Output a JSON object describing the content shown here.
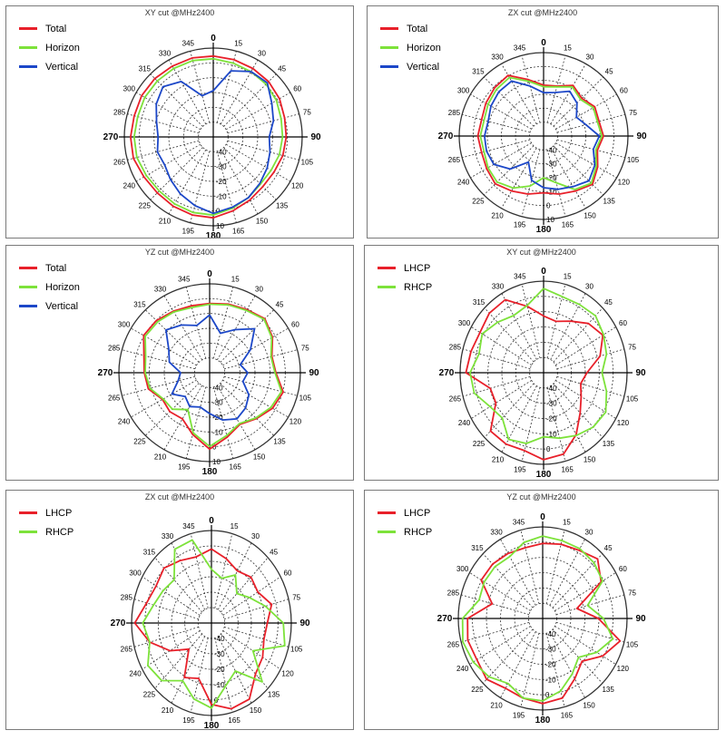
{
  "colors": {
    "red": "#e8202a",
    "green": "#7de23a",
    "blue": "#1c47c8",
    "grid": "#333333"
  },
  "chart_data": [
    {
      "type": "polar-line",
      "title": "XY cut @MHz2400",
      "angle_labels": [
        "0",
        "15",
        "30",
        "45",
        "60",
        "75",
        "90",
        "105",
        "120",
        "135",
        "150",
        "165",
        "180",
        "195",
        "210",
        "225",
        "240",
        "265",
        "270",
        "285",
        "300",
        "315",
        "330",
        "345"
      ],
      "radial_labels": [
        "-40",
        "-30",
        "-20",
        "-10",
        "0",
        "10"
      ],
      "legend": "top-left",
      "series": [
        {
          "name": "Total",
          "color": "red",
          "r": [
            0.91,
            0.9,
            0.89,
            0.88,
            0.86,
            0.83,
            0.82,
            0.81,
            0.79,
            0.79,
            0.82,
            0.86,
            0.91,
            0.91,
            0.9,
            0.89,
            0.9,
            0.93,
            0.93,
            0.92,
            0.93,
            0.93,
            0.92,
            0.92
          ]
        },
        {
          "name": "Horizon",
          "color": "green",
          "r": [
            0.88,
            0.86,
            0.85,
            0.84,
            0.82,
            0.79,
            0.78,
            0.77,
            0.75,
            0.75,
            0.79,
            0.83,
            0.88,
            0.88,
            0.87,
            0.86,
            0.87,
            0.89,
            0.89,
            0.88,
            0.89,
            0.89,
            0.89,
            0.89
          ]
        },
        {
          "name": "Vertical",
          "color": "blue",
          "r": [
            0.52,
            0.77,
            0.85,
            0.86,
            0.76,
            0.7,
            0.63,
            0.66,
            0.7,
            0.74,
            0.79,
            0.82,
            0.86,
            0.8,
            0.74,
            0.68,
            0.63,
            0.65,
            0.62,
            0.66,
            0.74,
            0.8,
            0.72,
            0.48
          ]
        }
      ]
    },
    {
      "type": "polar-line",
      "title": "ZX cut @MHz2400",
      "angle_labels": [
        "0",
        "15",
        "30",
        "45",
        "60",
        "75",
        "90",
        "105",
        "120",
        "135",
        "150",
        "165",
        "180",
        "195",
        "210",
        "225",
        "240",
        "265",
        "270",
        "285",
        "300",
        "315",
        "330",
        "345"
      ],
      "radial_labels": [
        "-40",
        "-30",
        "-20",
        "-10",
        "0",
        "10"
      ],
      "legend": "top-left",
      "series": [
        {
          "name": "Total",
          "color": "red",
          "r": [
            0.61,
            0.62,
            0.7,
            0.64,
            0.7,
            0.68,
            0.71,
            0.66,
            0.74,
            0.82,
            0.76,
            0.72,
            0.68,
            0.72,
            0.76,
            0.81,
            0.78,
            0.76,
            0.78,
            0.76,
            0.79,
            0.82,
            0.84,
            0.7
          ]
        },
        {
          "name": "Horizon",
          "color": "green",
          "r": [
            0.59,
            0.61,
            0.68,
            0.62,
            0.68,
            0.66,
            0.69,
            0.64,
            0.72,
            0.8,
            0.74,
            0.58,
            0.5,
            0.62,
            0.72,
            0.78,
            0.76,
            0.73,
            0.75,
            0.73,
            0.76,
            0.79,
            0.81,
            0.68
          ]
        },
        {
          "name": "Vertical",
          "color": "blue",
          "r": [
            0.52,
            0.54,
            0.62,
            0.56,
            0.45,
            0.52,
            0.66,
            0.61,
            0.7,
            0.76,
            0.7,
            0.66,
            0.62,
            0.55,
            0.36,
            0.56,
            0.68,
            0.7,
            0.7,
            0.68,
            0.72,
            0.75,
            0.76,
            0.62
          ]
        }
      ]
    },
    {
      "type": "polar-line",
      "title": "YZ cut @MHz2400",
      "angle_labels": [
        "0",
        "15",
        "30",
        "45",
        "60",
        "75",
        "90",
        "105",
        "120",
        "135",
        "150",
        "165",
        "180",
        "195",
        "210",
        "225",
        "240",
        "265",
        "270",
        "285",
        "300",
        "315",
        "330",
        "345"
      ],
      "radial_labels": [
        "-40",
        "-30",
        "-20",
        "-10",
        "0",
        "10"
      ],
      "legend": "top-left",
      "series": [
        {
          "name": "Total",
          "color": "red",
          "r": [
            0.78,
            0.8,
            0.82,
            0.86,
            0.8,
            0.71,
            0.73,
            0.84,
            0.8,
            0.73,
            0.67,
            0.75,
            0.86,
            0.72,
            0.6,
            0.62,
            0.6,
            0.7,
            0.72,
            0.75,
            0.84,
            0.83,
            0.8,
            0.78
          ]
        },
        {
          "name": "Horizon",
          "color": "green",
          "r": [
            0.77,
            0.79,
            0.81,
            0.85,
            0.79,
            0.7,
            0.72,
            0.82,
            0.78,
            0.72,
            0.66,
            0.73,
            0.83,
            0.7,
            0.48,
            0.58,
            0.59,
            0.68,
            0.71,
            0.73,
            0.82,
            0.81,
            0.79,
            0.76
          ]
        },
        {
          "name": "Vertical",
          "color": "blue",
          "r": [
            0.65,
            0.46,
            0.56,
            0.7,
            0.52,
            0.35,
            0.42,
            0.38,
            0.5,
            0.56,
            0.6,
            0.55,
            0.46,
            0.4,
            0.44,
            0.38,
            0.48,
            0.36,
            0.32,
            0.46,
            0.52,
            0.68,
            0.62,
            0.55
          ]
        }
      ]
    },
    {
      "type": "polar-line",
      "title": "XY cut @MHz2400",
      "angle_labels": [
        "0",
        "15",
        "30",
        "45",
        "60",
        "75",
        "90",
        "105",
        "120",
        "135",
        "150",
        "165",
        "180",
        "195",
        "210",
        "225",
        "240",
        "265",
        "270",
        "285",
        "300",
        "315",
        "330",
        "345"
      ],
      "radial_labels": [
        "-40",
        "-30",
        "-20",
        "-10",
        "0"
      ],
      "legend": "top-left",
      "series": [
        {
          "name": "LHCP",
          "color": "red",
          "r": [
            0.62,
            0.58,
            0.65,
            0.76,
            0.82,
            0.7,
            0.52,
            0.46,
            0.52,
            0.62,
            0.78,
            0.92,
            0.95,
            0.88,
            0.9,
            0.9,
            0.66,
            0.66,
            0.93,
            0.9,
            0.88,
            0.92,
            0.92,
            0.75
          ]
        },
        {
          "name": "RHCP",
          "color": "green",
          "r": [
            0.92,
            0.86,
            0.86,
            0.88,
            0.83,
            0.78,
            0.7,
            0.78,
            0.86,
            0.84,
            0.79,
            0.74,
            0.7,
            0.8,
            0.84,
            0.7,
            0.74,
            0.86,
            0.88,
            0.8,
            0.85,
            0.78,
            0.72,
            0.76
          ]
        }
      ]
    },
    {
      "type": "polar-line",
      "title": "ZX cut @MHz2400",
      "angle_labels": [
        "0",
        "15",
        "30",
        "45",
        "60",
        "75",
        "90",
        "105",
        "120",
        "135",
        "150",
        "165",
        "180",
        "195",
        "210",
        "225",
        "240",
        "265",
        "270",
        "285",
        "300",
        "315",
        "330",
        "345"
      ],
      "radial_labels": [
        "-40",
        "-30",
        "-20",
        "-10",
        "0"
      ],
      "legend": "top-left",
      "series": [
        {
          "name": "LHCP",
          "color": "red",
          "r": [
            0.8,
            0.72,
            0.65,
            0.7,
            0.67,
            0.78,
            0.7,
            0.68,
            0.74,
            0.78,
            0.95,
            0.96,
            0.88,
            0.62,
            0.68,
            0.4,
            0.6,
            0.8,
            0.96,
            0.84,
            0.8,
            0.84,
            0.78,
            0.74
          ]
        },
        {
          "name": "RHCP",
          "color": "green",
          "r": [
            0.58,
            0.5,
            0.6,
            0.45,
            0.55,
            0.7,
            0.9,
            0.95,
            0.6,
            0.9,
            0.6,
            0.7,
            0.92,
            0.85,
            0.72,
            0.88,
            0.92,
            0.8,
            0.86,
            0.75,
            0.7,
            0.66,
            0.92,
            0.93
          ]
        }
      ]
    },
    {
      "type": "polar-line",
      "title": "YZ cut @MHz2400",
      "angle_labels": [
        "0",
        "15",
        "30",
        "45",
        "60",
        "75",
        "90",
        "105",
        "120",
        "135",
        "150",
        "165",
        "180",
        "195",
        "210",
        "225",
        "240",
        "265",
        "270",
        "285",
        "300",
        "315",
        "330",
        "345"
      ],
      "radial_labels": [
        "-40",
        "-30",
        "-20",
        "-10",
        "0"
      ],
      "legend": "top-left",
      "series": [
        {
          "name": "LHCP",
          "color": "red",
          "r": [
            0.82,
            0.84,
            0.86,
            0.92,
            0.8,
            0.42,
            0.66,
            0.95,
            0.82,
            0.66,
            0.76,
            0.9,
            0.93,
            0.9,
            0.88,
            0.94,
            0.9,
            0.92,
            0.89,
            0.62,
            0.84,
            0.84,
            0.82,
            0.8
          ]
        },
        {
          "name": "RHCP",
          "color": "green",
          "r": [
            0.9,
            0.88,
            0.88,
            0.86,
            0.82,
            0.55,
            0.72,
            0.86,
            0.74,
            0.6,
            0.7,
            0.82,
            0.9,
            0.9,
            0.82,
            0.9,
            0.95,
            0.98,
            0.95,
            0.78,
            0.8,
            0.8,
            0.78,
            0.86
          ]
        }
      ]
    }
  ]
}
